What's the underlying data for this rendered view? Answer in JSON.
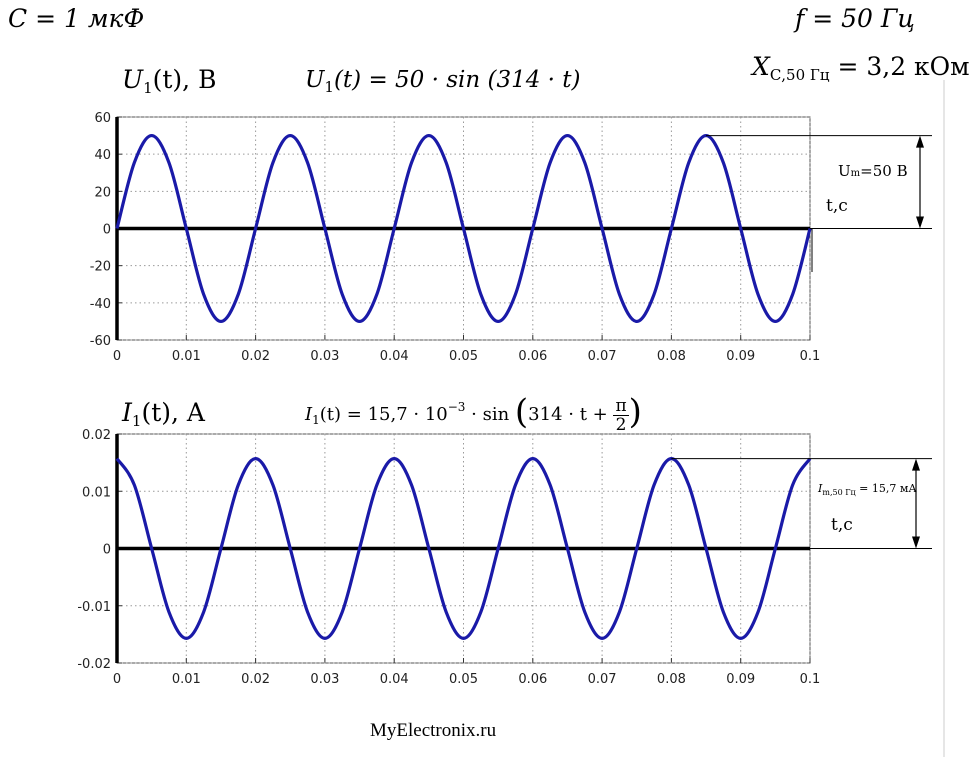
{
  "header": {
    "capacitance": "C = 1 мкФ",
    "frequency": "f = 50 Гц",
    "reactance_label": "X",
    "reactance_sub": "С,50 Гц",
    "reactance_value": " = 3,2 кОм"
  },
  "top": {
    "ylabel_sym": "U",
    "ylabel_sub": "1",
    "ylabel_rest": "(t), В",
    "formula_sym": "U",
    "formula_sub": "1",
    "formula_rest": "(t) = 50 · sin (314 · t)",
    "amp_label": "Um=50 В",
    "amp_label_base": "U",
    "amp_label_sub": "m",
    "amp_label_rest": "=50 В",
    "t_label": "t,c"
  },
  "bottom": {
    "ylabel_sym": "I",
    "ylabel_sub": "1",
    "ylabel_rest": "(t), A",
    "formula_sym": "I",
    "formula_sub": "1",
    "formula_mid": "(t) = 15,7 · 10",
    "formula_exp": "−3",
    "formula_sin": " · sin ",
    "formula_paren_open": "(",
    "formula_arg": "314 · t + ",
    "formula_pi": "π",
    "formula_two": "2",
    "formula_paren_close": ")",
    "amp_label_sym": "I",
    "amp_label_sub": "m,50 Гц",
    "amp_label_rest": " = 15,7 мА",
    "t_label": "t,c"
  },
  "watermark": "MyElectronix.ru",
  "colors": {
    "curve": "#1a1aa8",
    "grid": "#9a9a9a",
    "axis": "#000000"
  },
  "chart_data": [
    {
      "type": "line",
      "x": [
        0,
        0.0025,
        0.005,
        0.0075,
        0.01,
        0.0125,
        0.015,
        0.0175,
        0.02,
        0.0225,
        0.025,
        0.0275,
        0.03,
        0.0325,
        0.035,
        0.0375,
        0.04,
        0.0425,
        0.045,
        0.0475,
        0.05,
        0.0525,
        0.055,
        0.0575,
        0.06,
        0.0625,
        0.065,
        0.0675,
        0.07,
        0.0725,
        0.075,
        0.0775,
        0.08,
        0.0825,
        0.085,
        0.0875,
        0.09,
        0.0925,
        0.095,
        0.0975,
        0.1
      ],
      "series": [
        {
          "values": [
            0,
            35.4,
            50,
            35.4,
            0,
            -35.4,
            -50,
            -35.4,
            0,
            35.4,
            50,
            35.4,
            0,
            -35.4,
            -50,
            -35.4,
            0,
            35.4,
            50,
            35.4,
            0,
            -35.4,
            -50,
            -35.4,
            0,
            35.4,
            50,
            35.4,
            0,
            -35.4,
            -50,
            -35.4,
            0,
            35.4,
            50,
            35.4,
            0,
            -35.4,
            -50,
            -35.4,
            0
          ]
        }
      ],
      "xlim": [
        0,
        0.1
      ],
      "ylim": [
        -60,
        60
      ],
      "xticks": [
        "0",
        "0.01",
        "0.02",
        "0.03",
        "0.04",
        "0.05",
        "0.06",
        "0.07",
        "0.08",
        "0.09",
        "0.1"
      ],
      "yticks": [
        "60",
        "40",
        "20",
        "0",
        "-20",
        "-40",
        "-60"
      ],
      "grid": true
    },
    {
      "type": "line",
      "x": [
        0,
        0.0025,
        0.005,
        0.0075,
        0.01,
        0.0125,
        0.015,
        0.0175,
        0.02,
        0.0225,
        0.025,
        0.0275,
        0.03,
        0.0325,
        0.035,
        0.0375,
        0.04,
        0.0425,
        0.045,
        0.0475,
        0.05,
        0.0525,
        0.055,
        0.0575,
        0.06,
        0.0625,
        0.065,
        0.0675,
        0.07,
        0.0725,
        0.075,
        0.0775,
        0.08,
        0.0825,
        0.085,
        0.0875,
        0.09,
        0.0925,
        0.095,
        0.0975,
        0.1
      ],
      "series": [
        {
          "values": [
            0.0157,
            0.0111,
            0,
            -0.0111,
            -0.0157,
            -0.0111,
            0,
            0.0111,
            0.0157,
            0.0111,
            0,
            -0.0111,
            -0.0157,
            -0.0111,
            0,
            0.0111,
            0.0157,
            0.0111,
            0,
            -0.0111,
            -0.0157,
            -0.0111,
            0,
            0.0111,
            0.0157,
            0.0111,
            0,
            -0.0111,
            -0.0157,
            -0.0111,
            0,
            0.0111,
            0.0157,
            0.0111,
            0,
            -0.0111,
            -0.0157,
            -0.0111,
            0,
            0.0111,
            0.0157
          ]
        }
      ],
      "xlim": [
        0,
        0.1
      ],
      "ylim": [
        -0.02,
        0.02
      ],
      "xticks": [
        "0",
        "0.01",
        "0.02",
        "0.03",
        "0.04",
        "0.05",
        "0.06",
        "0.07",
        "0.08",
        "0.09",
        "0.1"
      ],
      "yticks": [
        "0.02",
        "0.01",
        "0",
        "-0.01",
        "-0.02"
      ],
      "grid": true
    }
  ]
}
